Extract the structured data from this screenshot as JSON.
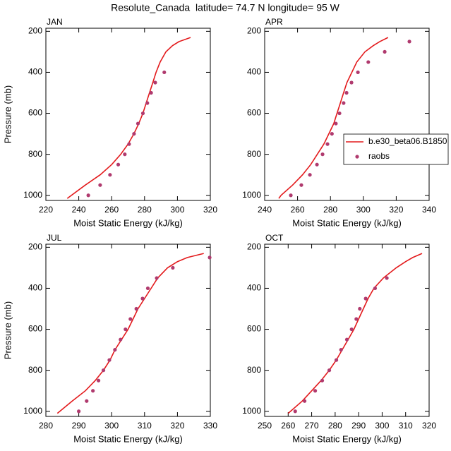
{
  "title": "Resolute_Canada  latitude= 74.7 N longitude= 95 W",
  "chart_data": [
    {
      "type": "line",
      "title": "JAN",
      "xlabel": "Moist Static Energy (kJ/kg)",
      "ylabel": "Pressure (mb)",
      "xlim": [
        220,
        320
      ],
      "xticks": [
        220,
        240,
        260,
        280,
        300,
        320
      ],
      "ylim": [
        1025,
        185
      ],
      "yticks": [
        200,
        400,
        600,
        800,
        1000
      ],
      "series": [
        {
          "name": "b.e30_beta06.B1850",
          "color": "#e31a1c",
          "style": "line",
          "x": [
            233,
            244,
            253,
            260,
            265.5,
            270,
            273.5,
            276.5,
            279,
            281,
            283,
            285,
            287,
            289.5,
            293,
            297,
            301,
            308
          ],
          "y": [
            1015,
            950,
            900,
            850,
            800,
            750,
            700,
            650,
            600,
            550,
            500,
            450,
            400,
            350,
            300,
            270,
            250,
            230
          ]
        },
        {
          "name": "raobs",
          "color": "#b03a6e",
          "style": "marker",
          "x": [
            245.8,
            253,
            259,
            264,
            268,
            270.6,
            273.6,
            276,
            279,
            281.7,
            284,
            286.5,
            292
          ],
          "y": [
            1000,
            950,
            900,
            850,
            800,
            750,
            700,
            650,
            600,
            550,
            500,
            450,
            400
          ]
        }
      ]
    },
    {
      "type": "line",
      "title": "APR",
      "xlabel": "Moist Static Energy (kJ/kg)",
      "xlim": [
        240,
        340
      ],
      "xticks": [
        240,
        260,
        280,
        300,
        320,
        340
      ],
      "ylim": [
        1025,
        185
      ],
      "yticks": [
        200,
        400,
        600,
        800,
        1000
      ],
      "legend": "right",
      "series": [
        {
          "name": "b.e30_beta06.B1850",
          "color": "#e31a1c",
          "style": "line",
          "x": [
            248.6,
            250,
            257,
            263,
            268,
            272,
            276,
            279,
            282,
            284,
            286,
            288,
            290,
            293,
            296,
            301,
            306,
            310,
            315
          ],
          "y": [
            1015,
            1000,
            950,
            900,
            850,
            800,
            750,
            700,
            650,
            600,
            550,
            500,
            450,
            400,
            350,
            300,
            270,
            250,
            230
          ]
        },
        {
          "name": "raobs",
          "color": "#b03a6e",
          "style": "marker",
          "x": [
            255.9,
            262.3,
            267.5,
            271.8,
            275.2,
            278.2,
            280.9,
            283.3,
            285.5,
            288,
            289.8,
            292.8,
            296.7,
            303,
            313,
            328
          ],
          "y": [
            1000,
            950,
            900,
            850,
            800,
            750,
            700,
            650,
            600,
            550,
            500,
            450,
            400,
            350,
            300,
            250
          ]
        }
      ]
    },
    {
      "type": "line",
      "title": "JUL",
      "xlabel": "Moist Static Energy (kJ/kg)",
      "ylabel": "Pressure (mb)",
      "xlim": [
        280,
        330
      ],
      "xticks": [
        280,
        290,
        300,
        310,
        320,
        330
      ],
      "ylim": [
        1025,
        185
      ],
      "yticks": [
        200,
        400,
        600,
        800,
        1000
      ],
      "series": [
        {
          "name": "b.e30_beta06.B1850",
          "color": "#e31a1c",
          "style": "line",
          "x": [
            283.5,
            288,
            292,
            295,
            297.5,
            299.5,
            301,
            303,
            305,
            306.5,
            308,
            310,
            312,
            314,
            317,
            320,
            323,
            328
          ],
          "y": [
            1010,
            950,
            900,
            850,
            800,
            750,
            700,
            650,
            600,
            550,
            500,
            450,
            400,
            350,
            300,
            270,
            250,
            230
          ]
        },
        {
          "name": "raobs",
          "color": "#b03a6e",
          "style": "marker",
          "x": [
            290,
            292.4,
            294.3,
            296,
            297.5,
            299.3,
            301,
            302.7,
            304.2,
            305.7,
            307.5,
            309.4,
            311,
            313.7,
            318.6,
            329.8
          ],
          "y": [
            1000,
            950,
            900,
            850,
            800,
            750,
            700,
            650,
            600,
            550,
            500,
            450,
            400,
            350,
            300,
            250
          ]
        }
      ]
    },
    {
      "type": "line",
      "title": "OCT",
      "xlabel": "Moist Static Energy (kJ/kg)",
      "xlim": [
        250,
        320
      ],
      "xticks": [
        250,
        260,
        270,
        280,
        290,
        300,
        310,
        320
      ],
      "ylim": [
        1025,
        185
      ],
      "yticks": [
        200,
        400,
        600,
        800,
        1000
      ],
      "series": [
        {
          "name": "b.e30_beta06.B1850",
          "color": "#e31a1c",
          "style": "line",
          "x": [
            260,
            266,
            270,
            274,
            277.5,
            280.5,
            283,
            285.5,
            288,
            290,
            292,
            294,
            296.5,
            300.5,
            306,
            310,
            313,
            317
          ],
          "y": [
            1010,
            950,
            900,
            850,
            800,
            750,
            700,
            650,
            600,
            550,
            500,
            450,
            400,
            350,
            300,
            270,
            250,
            230
          ]
        },
        {
          "name": "raobs",
          "color": "#b03a6e",
          "style": "marker",
          "x": [
            263,
            267,
            271.5,
            274.5,
            277.5,
            280.5,
            282.5,
            285,
            287,
            289,
            290.5,
            293,
            297,
            302
          ],
          "y": [
            1000,
            950,
            900,
            850,
            800,
            750,
            700,
            650,
            600,
            550,
            500,
            450,
            400,
            350
          ]
        }
      ]
    }
  ]
}
